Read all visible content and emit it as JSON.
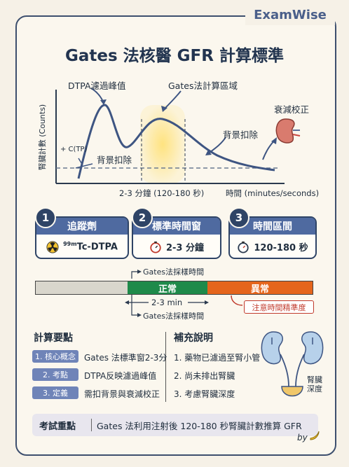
{
  "brand": "ExamWise",
  "title": "Gates 法核醫 GFR 計算標準",
  "graph": {
    "ylabel": "腎臟計數 (Counts)",
    "xlabel": "時間 (minutes/seconds)",
    "peak_label": "DTPA濾過峰值",
    "region_label": "Gates法計算區域",
    "bg_left_label": "背景扣除",
    "bg_right_label": "背景扣除",
    "c_label": "+ C(TP)",
    "window_label": "2-3 分鐘 (120-180 秒)",
    "atten_label": "衰減校正"
  },
  "steps": [
    {
      "num": "1",
      "title": "追蹤劑",
      "value": "Tc-DTPA",
      "sup": "99m",
      "icon": "radiation-icon"
    },
    {
      "num": "2",
      "title": "標準時間窗",
      "value": "2-3 分鐘",
      "icon": "stopwatch-icon"
    },
    {
      "num": "3",
      "title": "時間區間",
      "value": "120-180 秒",
      "icon": "stopwatch-icon"
    }
  ],
  "timeline": {
    "top_label": "Gates法採樣時間",
    "normal": "正常",
    "abnormal": "異常",
    "range": "2-3 min",
    "bottom_label": "Gates法採樣時間",
    "note": "注意時間精準度"
  },
  "points": {
    "title": "計算要點",
    "items": [
      {
        "tag": "1. 核心概念",
        "text": "Gates 法標準窗2-3分"
      },
      {
        "tag": "2. 考點",
        "text": "DTPA反映濾過峰值"
      },
      {
        "tag": "3. 定義",
        "text": "需扣背景與衰減校正"
      }
    ]
  },
  "supplement": {
    "title": "補充說明",
    "items": [
      "1. 藥物已濾過至腎小管",
      "2. 尚未排出腎臟",
      "3. 考慮腎臟深度"
    ],
    "depth_label": "腎臟\n深度"
  },
  "exam": {
    "tag": "考試重點",
    "text": "Gates 法利用注射後 120-180 秒腎臟計數推算 GFR"
  },
  "signature": "by"
}
